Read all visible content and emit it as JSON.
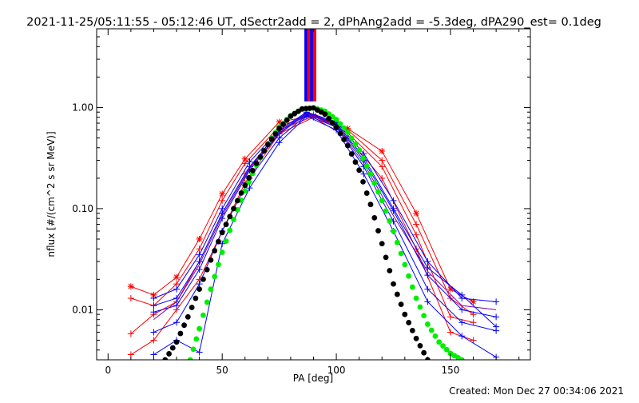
{
  "chart_data": {
    "type": "line",
    "title": "2021-11-25/05:11:55 - 05:12:46 UT, dSectr2add = 2, dPhAng2add = -5.3deg, dPA290_est=  0.1deg",
    "xlabel": "PA [deg]",
    "ylabel": "nflux [#/(cm^2 s sr MeV)]",
    "footer": "Created: Mon Dec 27 00:34:06 2021",
    "xlim": [
      -5,
      185
    ],
    "ylim": [
      0.0032,
      6.0
    ],
    "yscale": "log",
    "x_ticks": [
      0,
      50,
      100,
      150
    ],
    "x_tick_labels": [
      "0",
      "50",
      "100",
      "150"
    ],
    "y_ticks": [
      0.01,
      0.1,
      1.0
    ],
    "y_tick_labels": [
      "0.01",
      "0.10",
      "1.00"
    ],
    "grid": false,
    "legend": "none",
    "colors": {
      "red": "#ff0000",
      "blue": "#0000ff",
      "green": "#00ee00",
      "black": "#000000",
      "purple": "#7f00a0"
    },
    "spike": {
      "x": [
        86,
        91
      ],
      "y": [
        1.15,
        6.0
      ]
    },
    "series": [
      {
        "color": "red",
        "marker": "asterisk",
        "x": [
          10,
          20,
          30,
          40,
          50,
          60,
          75,
          90,
          105,
          120,
          135,
          150,
          160
        ],
        "y": [
          0.017,
          0.014,
          0.021,
          0.05,
          0.14,
          0.31,
          0.72,
          0.83,
          0.62,
          0.37,
          0.09,
          0.016,
          0.012
        ]
      },
      {
        "color": "red",
        "marker": "plus",
        "x": [
          10,
          20,
          30,
          40,
          50,
          60,
          75,
          90,
          105,
          120,
          135,
          150,
          160
        ],
        "y": [
          0.013,
          0.011,
          0.018,
          0.04,
          0.12,
          0.28,
          0.65,
          0.85,
          0.6,
          0.3,
          0.07,
          0.013,
          0.009
        ]
      },
      {
        "color": "red",
        "marker": "plus",
        "x": [
          10,
          20,
          30,
          40,
          50,
          60,
          75,
          90,
          105,
          120,
          135,
          150,
          160
        ],
        "y": [
          0.0058,
          0.009,
          0.012,
          0.03,
          0.09,
          0.22,
          0.6,
          0.82,
          0.56,
          0.26,
          0.055,
          0.0085,
          0.0075
        ]
      },
      {
        "color": "red",
        "marker": "plus",
        "x": [
          10,
          20,
          30,
          40,
          50,
          60,
          75,
          90,
          105,
          120,
          135,
          150,
          160
        ],
        "y": [
          0.0036,
          0.005,
          0.01,
          0.02,
          0.06,
          0.18,
          0.55,
          0.8,
          0.5,
          0.2,
          0.04,
          0.006,
          0.005
        ]
      },
      {
        "color": "blue",
        "marker": "plus",
        "x": [
          20,
          30,
          40,
          50,
          62,
          75,
          87,
          100,
          112,
          125,
          140,
          155,
          170
        ],
        "y": [
          0.013,
          0.016,
          0.035,
          0.1,
          0.29,
          0.6,
          0.9,
          0.72,
          0.35,
          0.12,
          0.03,
          0.013,
          0.012
        ]
      },
      {
        "color": "blue",
        "marker": "plus",
        "x": [
          20,
          30,
          40,
          50,
          62,
          75,
          87,
          100,
          112,
          125,
          140,
          155,
          170
        ],
        "y": [
          0.0095,
          0.011,
          0.025,
          0.08,
          0.24,
          0.55,
          0.86,
          0.68,
          0.3,
          0.095,
          0.022,
          0.01,
          0.0085
        ]
      },
      {
        "color": "blue",
        "marker": "plus",
        "x": [
          20,
          30,
          40,
          50,
          62,
          75,
          87,
          100,
          112,
          125,
          140,
          155,
          170
        ],
        "y": [
          0.006,
          0.0075,
          0.018,
          0.06,
          0.2,
          0.5,
          0.84,
          0.64,
          0.26,
          0.075,
          0.016,
          0.0075,
          0.0062
        ]
      },
      {
        "color": "blue",
        "marker": "plus",
        "x": [
          20,
          30,
          40,
          50,
          62,
          75,
          87,
          100,
          112,
          125,
          140,
          155,
          170
        ],
        "y": [
          0.0036,
          0.005,
          0.0038,
          0.045,
          0.16,
          0.45,
          0.82,
          0.6,
          0.22,
          0.06,
          0.012,
          0.0055,
          0.0034
        ]
      },
      {
        "color": "blue",
        "marker": "plus",
        "x": [
          20,
          30,
          40,
          50,
          62,
          75,
          87,
          100,
          112,
          125,
          140,
          155,
          170
        ],
        "y": [
          0.011,
          0.013,
          0.03,
          0.09,
          0.26,
          0.58,
          0.88,
          0.7,
          0.32,
          0.1,
          0.026,
          0.014,
          0.0068
        ]
      },
      {
        "color": "purple",
        "marker": "none",
        "x": [
          20,
          30,
          40,
          50,
          62,
          75,
          87,
          100,
          112,
          125,
          140,
          155,
          170
        ],
        "y": [
          0.008,
          0.012,
          0.028,
          0.085,
          0.25,
          0.56,
          0.87,
          0.66,
          0.28,
          0.085,
          0.024,
          0.011,
          0.01
        ]
      },
      {
        "color": "green",
        "marker": "dot",
        "x": [
          36,
          40,
          45,
          50,
          55,
          60,
          65,
          70,
          75,
          80,
          85,
          90,
          95,
          100,
          105,
          110,
          115,
          120,
          125,
          130,
          135,
          140,
          145,
          150,
          155
        ],
        "y": [
          0.0032,
          0.0065,
          0.016,
          0.037,
          0.078,
          0.15,
          0.27,
          0.44,
          0.64,
          0.83,
          0.96,
          0.99,
          0.92,
          0.76,
          0.57,
          0.38,
          0.22,
          0.12,
          0.06,
          0.028,
          0.013,
          0.0072,
          0.0048,
          0.0037,
          0.0032
        ]
      },
      {
        "color": "black",
        "marker": "dot",
        "x": [
          25,
          30,
          35,
          40,
          45,
          50,
          55,
          60,
          65,
          70,
          75,
          80,
          85,
          90,
          95,
          100,
          105,
          110,
          115,
          120,
          125,
          130,
          135,
          140
        ],
        "y": [
          0.0032,
          0.0048,
          0.0085,
          0.016,
          0.031,
          0.058,
          0.1,
          0.17,
          0.28,
          0.43,
          0.62,
          0.82,
          0.97,
          0.99,
          0.86,
          0.64,
          0.42,
          0.24,
          0.11,
          0.045,
          0.018,
          0.009,
          0.0052,
          0.0032
        ]
      }
    ]
  }
}
